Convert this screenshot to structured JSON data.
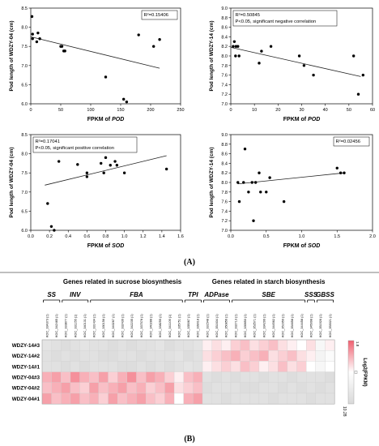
{
  "panel_labels": {
    "a": "(A)",
    "b": "(B)"
  },
  "chart_data": [
    {
      "type": "scatter",
      "xlabel_prefix": "FPKM of ",
      "xlabel_gene": "POD",
      "ylabel": "Pod length of WDZY-04 (cm)",
      "annotation_lines": [
        "R²=0.15406"
      ],
      "annotation_boxed": true,
      "xlim": [
        0,
        250
      ],
      "ylim": [
        6.0,
        8.5
      ],
      "xticks": [
        "0",
        "50",
        "100",
        "150",
        "200",
        "250"
      ],
      "yticks": [
        "6.0",
        "6.5",
        "7.0",
        "7.5",
        "8.0",
        "8.5"
      ],
      "trend": [
        [
          0,
          7.75
        ],
        [
          215,
          6.93
        ]
      ],
      "points": [
        [
          2,
          8.28
        ],
        [
          3,
          7.7
        ],
        [
          3,
          7.82
        ],
        [
          10,
          7.62
        ],
        [
          12,
          7.85
        ],
        [
          15,
          7.7
        ],
        [
          50,
          7.5
        ],
        [
          52,
          7.5
        ],
        [
          55,
          7.38
        ],
        [
          57,
          7.38
        ],
        [
          125,
          6.7
        ],
        [
          155,
          6.12
        ],
        [
          160,
          6.05
        ],
        [
          180,
          7.8
        ],
        [
          205,
          7.5
        ],
        [
          215,
          7.68
        ]
      ]
    },
    {
      "type": "scatter",
      "xlabel_prefix": "FPKM of ",
      "xlabel_gene": "POD",
      "ylabel": "Pod length of WDZY-14 (cm)",
      "annotation_lines": [
        "R²=0.50845",
        "P<0.05, significant negative correlation"
      ],
      "annotation_boxed": true,
      "xlim": [
        0,
        60
      ],
      "ylim": [
        7.0,
        9.0
      ],
      "xticks": [
        "0",
        "10",
        "20",
        "30",
        "40",
        "50",
        "60"
      ],
      "yticks": [
        "7.0",
        "7.2",
        "7.4",
        "7.6",
        "7.8",
        "8.0",
        "8.2",
        "8.4",
        "8.6",
        "8.8",
        "9.0"
      ],
      "trend": [
        [
          0,
          8.18
        ],
        [
          55,
          7.57
        ]
      ],
      "points": [
        [
          1,
          8.2
        ],
        [
          1.5,
          8.3
        ],
        [
          2,
          8.0
        ],
        [
          2.2,
          8.2
        ],
        [
          2.5,
          8.7
        ],
        [
          3,
          8.2
        ],
        [
          3.5,
          8.0
        ],
        [
          12,
          7.85
        ],
        [
          13,
          8.1
        ],
        [
          17,
          8.2
        ],
        [
          29,
          8.0
        ],
        [
          31,
          7.8
        ],
        [
          35,
          7.6
        ],
        [
          52,
          8.0
        ],
        [
          54,
          7.2
        ],
        [
          56,
          7.6
        ]
      ]
    },
    {
      "type": "scatter",
      "xlabel_prefix": "FPKM of ",
      "xlabel_gene": "SOD",
      "ylabel": "Pod length of WDZY-04 (cm)",
      "annotation_lines": [
        "R²=0.17041",
        "P<0.05, significant positive correlation"
      ],
      "annotation_boxed": true,
      "xlim": [
        0.0,
        1.6
      ],
      "ylim": [
        6.0,
        8.5
      ],
      "xticks": [
        "0.0",
        "0.2",
        "0.4",
        "0.6",
        "0.8",
        "1.0",
        "1.2",
        "1.4",
        "1.6"
      ],
      "yticks": [
        "6.0",
        "6.5",
        "7.0",
        "7.5",
        "8.0",
        "8.5"
      ],
      "trend": [
        [
          0.15,
          7.18
        ],
        [
          1.45,
          7.95
        ]
      ],
      "points": [
        [
          0.18,
          6.7
        ],
        [
          0.22,
          6.1
        ],
        [
          0.25,
          6.0
        ],
        [
          0.3,
          7.8
        ],
        [
          0.38,
          8.28
        ],
        [
          0.5,
          7.72
        ],
        [
          0.6,
          7.5
        ],
        [
          0.6,
          7.4
        ],
        [
          0.75,
          7.75
        ],
        [
          0.78,
          7.5
        ],
        [
          0.8,
          7.9
        ],
        [
          0.85,
          7.7
        ],
        [
          0.9,
          7.8
        ],
        [
          0.92,
          7.7
        ],
        [
          1.0,
          7.5
        ],
        [
          1.45,
          7.6
        ]
      ]
    },
    {
      "type": "scatter",
      "xlabel_prefix": "FPKM of ",
      "xlabel_gene": "SOD",
      "ylabel": "Pod length of WDZY-14 (cm)",
      "annotation_lines": [
        "R²=0.02456"
      ],
      "annotation_boxed": true,
      "xlim": [
        0.0,
        2.0
      ],
      "ylim": [
        7.0,
        9.0
      ],
      "xticks": [
        "0.0",
        "0.5",
        "1.0",
        "1.5",
        "2.0"
      ],
      "yticks": [
        "7.0",
        "7.2",
        "7.4",
        "7.6",
        "7.8",
        "8.0",
        "8.2",
        "8.4",
        "8.6",
        "8.8",
        "9.0"
      ],
      "trend": [
        [
          0.1,
          7.97
        ],
        [
          1.6,
          8.2
        ]
      ],
      "points": [
        [
          0.1,
          8.0
        ],
        [
          0.12,
          7.6
        ],
        [
          0.18,
          8.0
        ],
        [
          0.2,
          8.7
        ],
        [
          0.25,
          7.8
        ],
        [
          0.3,
          8.0
        ],
        [
          0.32,
          7.2
        ],
        [
          0.35,
          8.0
        ],
        [
          0.4,
          8.2
        ],
        [
          0.42,
          7.8
        ],
        [
          0.5,
          7.8
        ],
        [
          0.55,
          8.1
        ],
        [
          0.75,
          7.6
        ],
        [
          1.5,
          8.3
        ],
        [
          1.55,
          8.2
        ],
        [
          1.6,
          8.2
        ]
      ]
    },
    {
      "type": "heatmap",
      "group_titles": [
        "Genes related in sucrose biosynthesis",
        "Genes related in starch biosynthesis"
      ],
      "families": [
        {
          "name": "SS",
          "start": 0,
          "end": 1
        },
        {
          "name": "INV",
          "start": 2,
          "end": 4
        },
        {
          "name": "FBA",
          "start": 5,
          "end": 14
        },
        {
          "name": "TPI",
          "start": 15,
          "end": 16
        },
        {
          "name": "ADPase",
          "start": 17,
          "end": 19
        },
        {
          "name": "SBE",
          "start": 20,
          "end": 27
        },
        {
          "name": "SSS",
          "start": 28,
          "end": 28
        },
        {
          "name": "GBSS",
          "start": 29,
          "end": 30
        }
      ],
      "columns": [
        "KOC_334373 (1)",
        "KOC_342465 (1)",
        "KOC_333877 (1)",
        "KOC_331155 (1)",
        "KOC_340131 (1)",
        "KOC_331434 (1)",
        "KOC_330156 (1)",
        "KOC_340267 (1)",
        "KOC_332439 (1)",
        "KOC_342235 (1)",
        "KOC_337578 (1)",
        "KOC_340288 (1)",
        "KOC_338255 (1)",
        "KOC_341109 (1)",
        "KOC_335751 (1)",
        "KOC_335067 (1)",
        "KOC_339018 (1)",
        "KOC_331548 (1)",
        "KOC_351634 (1)",
        "KOC_350856 (1)",
        "KOC_332713 (1)",
        "KOC_339850 (1)",
        "KOC_352571 (1)",
        "KOC_334299 (1)",
        "KOC_344562 (1)",
        "KOC_351659 (1)",
        "KOC_354658 (1)",
        "KOC_344458 (1)",
        "KOC_345098 (1)",
        "KOC_351926 (1)",
        "KOC_353021 (1)"
      ],
      "rows": [
        "WDZY-14#3",
        "WDZY-14#2",
        "WDZY-14#1",
        "WDZY-04#3",
        "WDZY-04#2",
        "WDZY-04#1"
      ],
      "values": [
        [
          0.15,
          0.1,
          0.05,
          0.1,
          0.15,
          0.1,
          0.1,
          0.05,
          0.1,
          0.05,
          0.1,
          0.1,
          0.15,
          0.05,
          0.1,
          0.1,
          0.15,
          0.55,
          0.6,
          0.55,
          0.65,
          0.7,
          0.6,
          0.65,
          0.7,
          0.6,
          0.55,
          0.5,
          0.6,
          0.4,
          0.55
        ],
        [
          0.1,
          0.05,
          0.1,
          0.05,
          0.1,
          0.1,
          0.05,
          0.05,
          0.1,
          0.1,
          0.05,
          0.1,
          0.1,
          0.1,
          0.15,
          0.05,
          0.1,
          0.6,
          0.65,
          0.7,
          0.75,
          0.65,
          0.7,
          0.75,
          0.6,
          0.65,
          0.7,
          0.6,
          0.55,
          0.35,
          0.45
        ],
        [
          0.1,
          0.1,
          0.05,
          0.1,
          0.05,
          0.1,
          0.1,
          0.1,
          0.05,
          0.05,
          0.1,
          0.05,
          0.1,
          0.05,
          0.1,
          0.15,
          0.1,
          0.55,
          0.6,
          0.65,
          0.6,
          0.7,
          0.65,
          0.55,
          0.6,
          0.7,
          0.6,
          0.65,
          0.5,
          0.4,
          0.5
        ],
        [
          0.75,
          0.8,
          0.7,
          0.85,
          0.75,
          0.7,
          0.8,
          0.65,
          0.75,
          0.85,
          0.7,
          0.8,
          0.75,
          0.65,
          0.55,
          0.7,
          0.75,
          0.1,
          0.05,
          0.1,
          0.05,
          0.1,
          0.1,
          0.05,
          0.1,
          0.1,
          0.05,
          0.1,
          0.1,
          0.1,
          0.05
        ],
        [
          0.7,
          0.75,
          0.8,
          0.7,
          0.65,
          0.8,
          0.7,
          0.75,
          0.8,
          0.7,
          0.75,
          0.65,
          0.7,
          0.8,
          0.6,
          0.65,
          0.7,
          0.05,
          0.1,
          0.1,
          0.1,
          0.05,
          0.05,
          0.1,
          0.1,
          0.05,
          0.1,
          0.05,
          0.1,
          0.05,
          0.1
        ],
        [
          0.8,
          0.7,
          0.75,
          0.8,
          0.7,
          0.75,
          0.65,
          0.8,
          0.7,
          0.75,
          0.8,
          0.7,
          0.65,
          0.75,
          0.5,
          0.75,
          0.8,
          0.1,
          0.1,
          0.05,
          0.1,
          0.1,
          0.1,
          0.1,
          0.05,
          0.1,
          0.1,
          0.1,
          0.05,
          0.1,
          0.1
        ]
      ],
      "colorbar_label": "Log2(FPKM)",
      "colorbar_ticks": [
        "1.8",
        "10.28"
      ],
      "colors": {
        "low": "#d9d9d9",
        "mid": "#ffffff",
        "high": "#f06070"
      }
    }
  ]
}
